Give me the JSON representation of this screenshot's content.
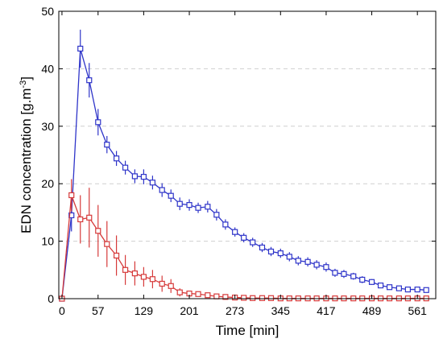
{
  "chart_data": {
    "type": "line",
    "title": "",
    "xlabel": "Time [min]",
    "ylabel_main": "EDN concentration [g.m",
    "ylabel_sup": "-3",
    "ylabel_close": "]",
    "xlim": [
      -5,
      590
    ],
    "ylim": [
      0,
      50
    ],
    "xticks": [
      0,
      57,
      129,
      201,
      273,
      345,
      417,
      489,
      561
    ],
    "yticks": [
      0,
      10,
      20,
      30,
      40,
      50
    ],
    "grid": true,
    "grid_style": "dashed horizontal",
    "legend": "none",
    "series": [
      {
        "color": "#2f35c9",
        "marker": "square",
        "x": [
          0,
          15,
          29,
          43,
          57,
          71,
          86,
          100,
          115,
          129,
          143,
          158,
          172,
          186,
          201,
          215,
          230,
          244,
          258,
          273,
          287,
          301,
          316,
          330,
          345,
          359,
          373,
          388,
          402,
          417,
          431,
          445,
          460,
          474,
          489,
          503,
          517,
          532,
          546,
          561,
          575
        ],
        "y": [
          0,
          14.5,
          43.5,
          38.0,
          30.7,
          26.8,
          24.4,
          22.8,
          21.3,
          21.2,
          20.2,
          18.9,
          17.9,
          16.5,
          16.3,
          15.8,
          16.0,
          14.6,
          12.9,
          11.6,
          10.6,
          9.8,
          8.9,
          8.2,
          7.9,
          7.3,
          6.6,
          6.4,
          5.9,
          5.5,
          4.5,
          4.3,
          3.9,
          3.3,
          2.9,
          2.3,
          2.0,
          1.8,
          1.6,
          1.6,
          1.5
        ],
        "err": [
          0,
          2.8,
          3.3,
          3.0,
          2.3,
          1.5,
          1.3,
          1.2,
          1.2,
          1.3,
          1.2,
          1.2,
          1.1,
          1.1,
          1.0,
          0.9,
          1.0,
          1.0,
          0.9,
          0.8,
          0.8,
          0.8,
          0.8,
          0.8,
          0.8,
          0.8,
          0.8,
          0.8,
          0.8,
          0.8,
          0.7,
          0.7,
          0.6,
          0.6,
          0.5,
          0.4,
          0.4,
          0.3,
          0.3,
          0.3,
          0.3
        ]
      },
      {
        "color": "#d63a3a",
        "marker": "square",
        "x": [
          0,
          15,
          29,
          43,
          57,
          71,
          86,
          100,
          115,
          129,
          143,
          158,
          172,
          186,
          201,
          215,
          230,
          244,
          258,
          273,
          287,
          301,
          316,
          330,
          345,
          359,
          373,
          388,
          402,
          417,
          431,
          445,
          460,
          474,
          489,
          503,
          517,
          532,
          546,
          561,
          575
        ],
        "y": [
          0,
          18.0,
          13.8,
          14.1,
          11.8,
          9.5,
          7.5,
          5.0,
          4.4,
          3.8,
          3.4,
          2.6,
          2.2,
          1.1,
          0.9,
          0.8,
          0.6,
          0.4,
          0.3,
          0.2,
          0.15,
          0.1,
          0.1,
          0.1,
          0.05,
          0.05,
          0.05,
          0.05,
          0.05,
          0.05,
          0.05,
          0.05,
          0.05,
          0.05,
          0.05,
          0.05,
          0.05,
          0.05,
          0.05,
          0.05,
          0.05
        ],
        "err": [
          0,
          2.8,
          4.2,
          5.2,
          4.5,
          4.0,
          3.5,
          2.6,
          2.1,
          1.7,
          1.6,
          1.4,
          1.2,
          0.7,
          0.5,
          0.4,
          0.3,
          0.3,
          0.2,
          0.2,
          0.1,
          0.1,
          0.1,
          0.1,
          0.05,
          0.05,
          0.05,
          0.05,
          0.05,
          0.05,
          0.05,
          0.05,
          0.05,
          0.05,
          0.05,
          0.05,
          0.05,
          0.05,
          0.05,
          0.05,
          0.05
        ]
      }
    ]
  }
}
